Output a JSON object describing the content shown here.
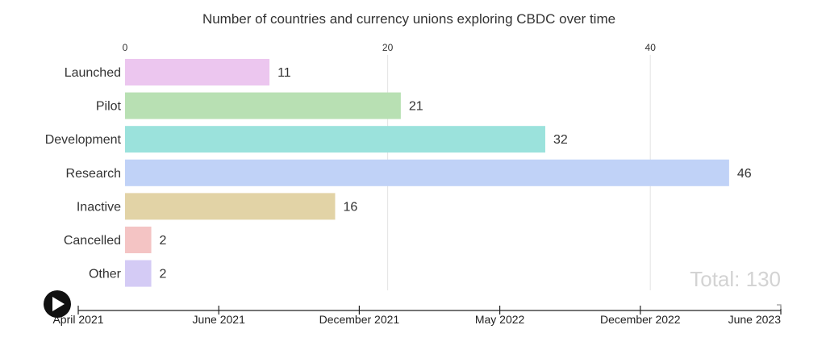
{
  "chart_data": {
    "type": "bar",
    "orientation": "horizontal",
    "title": "Number of countries and currency unions exploring CBDC over time",
    "xlim": [
      0,
      50
    ],
    "xticks": [
      "0",
      "20",
      "40"
    ],
    "xtick_values": [
      0,
      20,
      40
    ],
    "x_axis_position": "top",
    "grid": true,
    "categories": [
      "Launched",
      "Pilot",
      "Development",
      "Research",
      "Inactive",
      "Cancelled",
      "Other"
    ],
    "values": [
      11,
      21,
      32,
      46,
      16,
      2,
      2
    ],
    "value_labels": [
      "11",
      "21",
      "32",
      "46",
      "16",
      "2",
      "2"
    ],
    "colors": [
      "#ecc6ef",
      "#b8e0b3",
      "#9be2dc",
      "#c0d2f7",
      "#e2d3a6",
      "#f4c4c4",
      "#d4cbf5"
    ],
    "annotation": "Total: 130"
  },
  "timeline": {
    "labels": [
      "April 2021",
      "June 2021",
      "December 2021",
      "May 2022",
      "December 2022",
      "June 2023"
    ],
    "play_icon": "play-icon",
    "current": "June 2023"
  }
}
